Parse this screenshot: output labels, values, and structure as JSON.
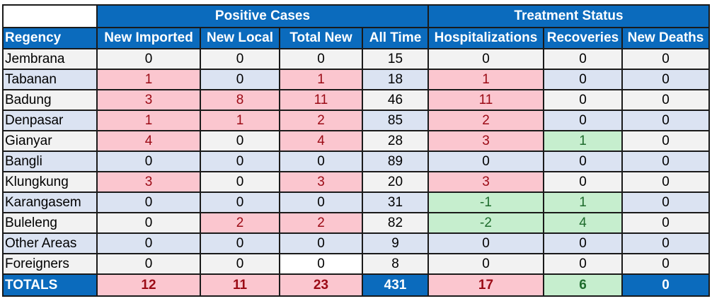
{
  "groups": {
    "positive": "Positive Cases",
    "treatment": "Treatment Status"
  },
  "columns": [
    "Regency",
    "New Imported",
    "New Local",
    "Total New",
    "All Time",
    "Hospitalizations",
    "Recoveries",
    "New Deaths"
  ],
  "rows": [
    {
      "regency": "Jembrana",
      "values": [
        "0",
        "0",
        "0",
        "15",
        "0",
        "0",
        "0"
      ]
    },
    {
      "regency": "Tabanan",
      "values": [
        "1",
        "0",
        "1",
        "18",
        "1",
        "0",
        "0"
      ]
    },
    {
      "regency": "Badung",
      "values": [
        "3",
        "8",
        "11",
        "46",
        "11",
        "0",
        "0"
      ]
    },
    {
      "regency": "Denpasar",
      "values": [
        "1",
        "1",
        "2",
        "85",
        "2",
        "0",
        "0"
      ]
    },
    {
      "regency": "Gianyar",
      "values": [
        "4",
        "0",
        "4",
        "28",
        "3",
        "1",
        "0"
      ]
    },
    {
      "regency": "Bangli",
      "values": [
        "0",
        "0",
        "0",
        "89",
        "0",
        "0",
        "0"
      ]
    },
    {
      "regency": "Klungkung",
      "values": [
        "3",
        "0",
        "3",
        "20",
        "3",
        "0",
        "0"
      ]
    },
    {
      "regency": "Karangasem",
      "values": [
        "0",
        "0",
        "0",
        "31",
        "-1",
        "1",
        "0"
      ]
    },
    {
      "regency": "Buleleng",
      "values": [
        "0",
        "2",
        "2",
        "82",
        "-2",
        "4",
        "0"
      ]
    },
    {
      "regency": "Other Areas",
      "values": [
        "0",
        "0",
        "0",
        "9",
        "0",
        "0",
        "0"
      ]
    },
    {
      "regency": "Foreigners",
      "values": [
        "0",
        "0",
        "0",
        "8",
        "0",
        "0",
        "0"
      ]
    }
  ],
  "totals": {
    "label": "TOTALS",
    "values": [
      "12",
      "11",
      "23",
      "431",
      "17",
      "6",
      "0"
    ]
  },
  "colors": {
    "header_blue": "#0b6bbd",
    "highlight_red_bg": "#fbc6cf",
    "highlight_red_text": "#9b0a15",
    "highlight_green_bg": "#c6eece",
    "highlight_green_text": "#1e6b2c",
    "row_gray": "#f2f2f2",
    "row_blue": "#dbe3f2"
  }
}
